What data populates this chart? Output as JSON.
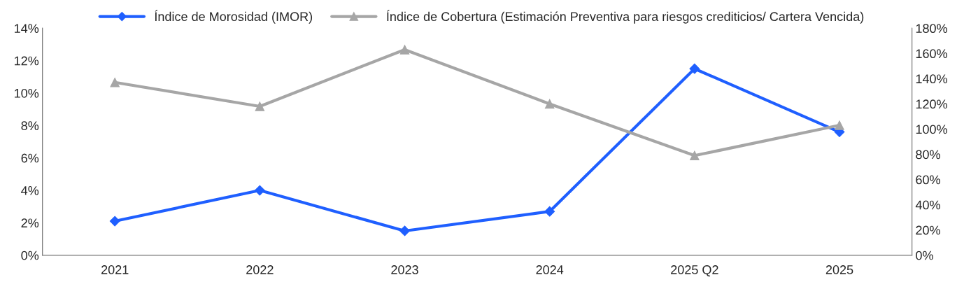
{
  "chart_data": {
    "type": "line",
    "categories": [
      "2021",
      "2022",
      "2023",
      "2024",
      "2025 Q2",
      "2025"
    ],
    "series": [
      {
        "name": "Índice de Morosidad (IMOR)",
        "color": "#1f5fff",
        "marker": "diamond",
        "values": [
          2.1,
          4.0,
          1.5,
          2.7,
          11.5,
          7.6
        ]
      },
      {
        "name": "Índice de Cobertura (Estimación Preventiva para riesgos crediticios/ Cartera Vencida)",
        "color": "#a6a6a6",
        "marker": "triangle",
        "axis": "y2",
        "values": [
          137,
          118,
          163,
          120,
          79,
          103
        ]
      }
    ],
    "ylim": [
      0,
      14
    ],
    "yticks": [
      {
        "value": 0,
        "label": "0%"
      },
      {
        "value": 2,
        "label": "2%"
      },
      {
        "value": 4,
        "label": "4%"
      },
      {
        "value": 6,
        "label": "6%"
      },
      {
        "value": 8,
        "label": "8%"
      },
      {
        "value": 10,
        "label": "10%"
      },
      {
        "value": 12,
        "label": "12%"
      },
      {
        "value": 14,
        "label": "14%"
      }
    ],
    "y2lim": [
      0,
      180
    ],
    "y2ticks": [
      {
        "value": 0,
        "label": "0%"
      },
      {
        "value": 20,
        "label": "20%"
      },
      {
        "value": 40,
        "label": "40%"
      },
      {
        "value": 60,
        "label": "60%"
      },
      {
        "value": 80,
        "label": "80%"
      },
      {
        "value": 100,
        "label": "100%"
      },
      {
        "value": 120,
        "label": "120%"
      },
      {
        "value": 140,
        "label": "140%"
      },
      {
        "value": 160,
        "label": "160%"
      },
      {
        "value": 180,
        "label": "180%"
      }
    ],
    "grid": false,
    "legend": "top",
    "line_style": "solid"
  }
}
